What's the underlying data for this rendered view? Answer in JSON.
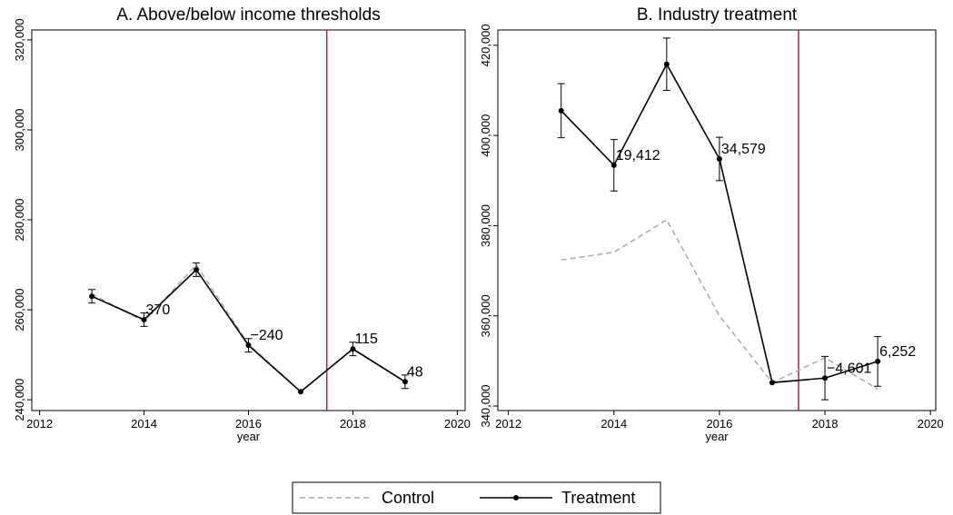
{
  "chart_data": [
    {
      "type": "line",
      "title": "A. Above/below income thresholds",
      "xlabel": "year",
      "x": [
        2013,
        2014,
        2015,
        2016,
        2017,
        2018,
        2019
      ],
      "xlim": [
        2011.85,
        2020.15
      ],
      "xticks": [
        2012,
        2014,
        2016,
        2018,
        2020
      ],
      "ylim": [
        237600,
        322200
      ],
      "yticks": [
        {
          "value": 240000,
          "label": "240,000"
        },
        {
          "value": 260000,
          "label": "260,000"
        },
        {
          "value": 280000,
          "label": "280,000"
        },
        {
          "value": 300000,
          "label": "300,000"
        },
        {
          "value": 320000,
          "label": "320,000"
        }
      ],
      "vline": 2017.5,
      "vline_color": "#c8163f",
      "series": [
        {
          "name": "Control",
          "color": "#aaaaaa",
          "dashed": true,
          "values": [
            263500,
            257400,
            270000,
            252400,
            241800,
            251200,
            243950
          ]
        },
        {
          "name": "Treatment",
          "color": "#000000",
          "markers": true,
          "values": [
            263000,
            257800,
            268900,
            252100,
            241800,
            251300,
            244000
          ],
          "errors": [
            1500,
            1500,
            1500,
            1500,
            null,
            1500,
            1500
          ]
        }
      ],
      "differences": {
        "x": [
          2014,
          2016,
          2018,
          2019
        ],
        "labels": [
          "370",
          "−240",
          "115",
          "48"
        ]
      }
    },
    {
      "type": "line",
      "title": "B. Industry treatment",
      "xlabel": "year",
      "x": [
        2013,
        2014,
        2015,
        2016,
        2017,
        2018,
        2019
      ],
      "xlim": [
        2011.8,
        2020.1
      ],
      "xticks": [
        2012,
        2014,
        2016,
        2018,
        2020
      ],
      "ylim": [
        339000,
        423400
      ],
      "yticks": [
        {
          "value": 340000,
          "label": "340,000"
        },
        {
          "value": 360000,
          "label": "360,000"
        },
        {
          "value": 380000,
          "label": "380,000"
        },
        {
          "value": 400000,
          "label": "400,000"
        },
        {
          "value": 420000,
          "label": "420,000"
        }
      ],
      "vline": 2017.5,
      "vline_color": "#c8163f",
      "series": [
        {
          "name": "Control",
          "color": "#aaaaaa",
          "dashed": true,
          "values": [
            372400,
            374100,
            381300,
            360000,
            345200,
            350700,
            343800
          ]
        },
        {
          "name": "Treatment",
          "color": "#000000",
          "markers": true,
          "values": [
            405500,
            393400,
            415800,
            394800,
            345200,
            346200,
            349900
          ],
          "errors": [
            6000,
            5700,
            5800,
            4800,
            null,
            4800,
            5500
          ]
        }
      ],
      "differences": {
        "x": [
          2014,
          2016,
          2018,
          2019
        ],
        "labels": [
          "19,412",
          "34,579",
          "−4,601",
          "6,252"
        ]
      }
    }
  ]
}
